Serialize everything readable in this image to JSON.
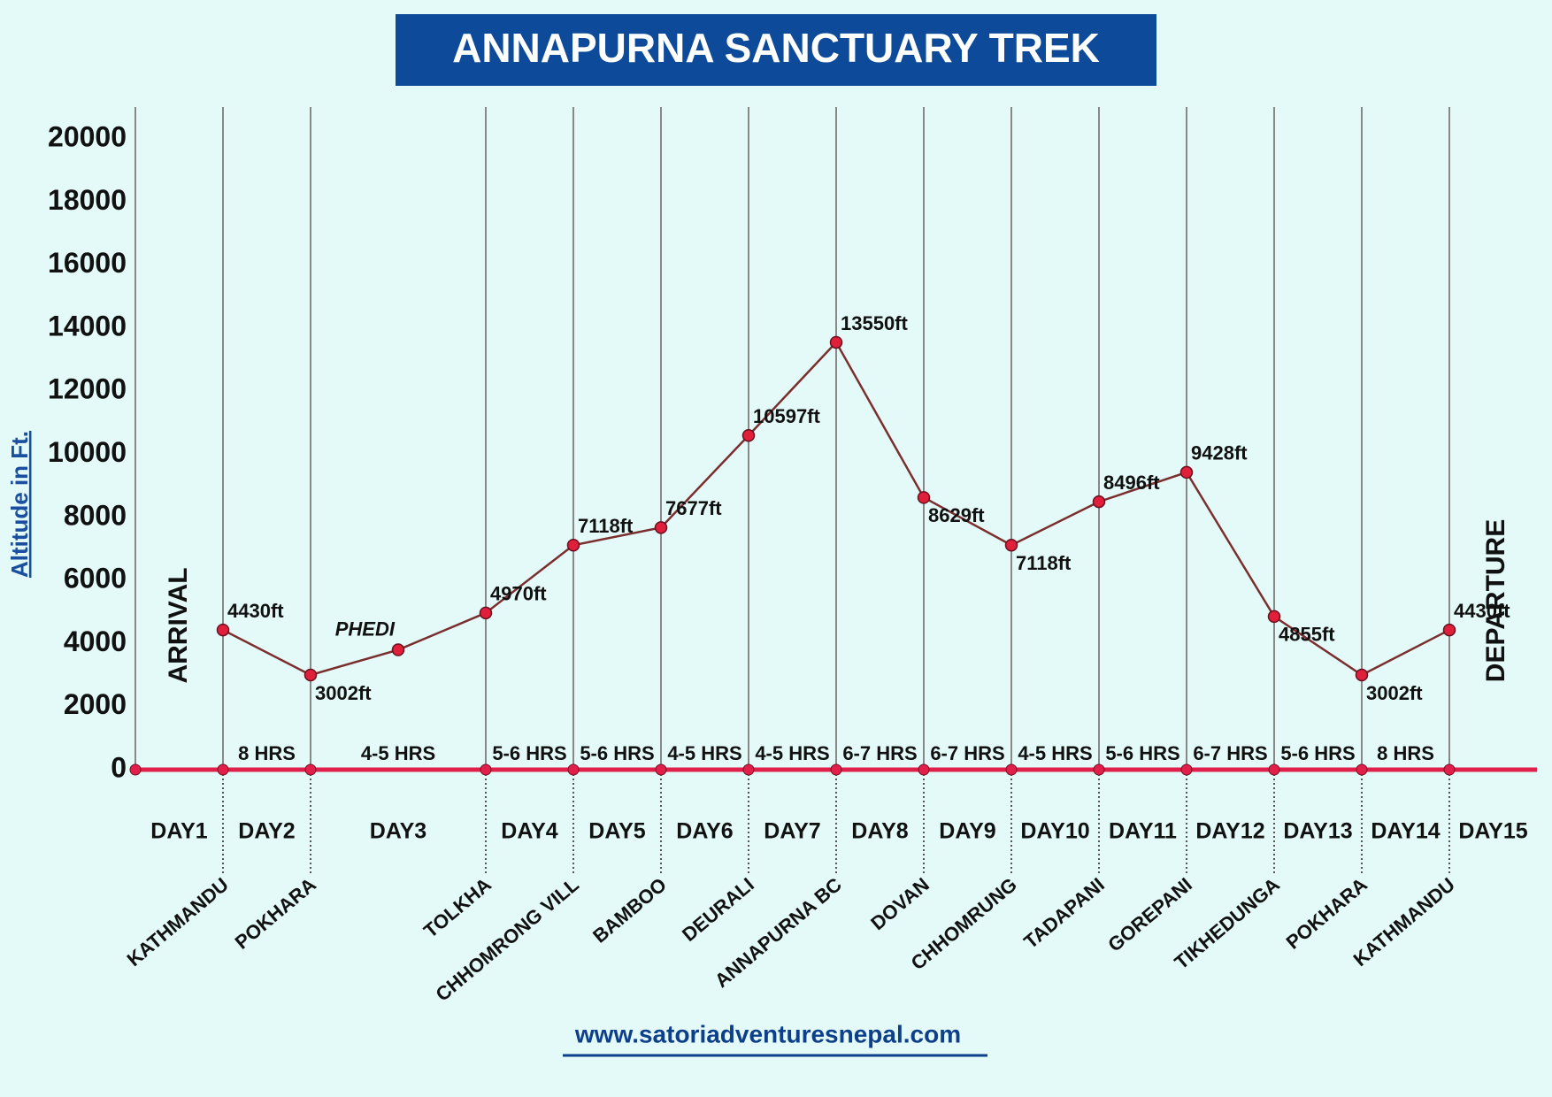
{
  "chart_data": {
    "type": "line",
    "title": "ANNAPURNA SANCTUARY TREK",
    "y_label": "Altitude in Ft.",
    "ylim": [
      0,
      20000
    ],
    "yticks": [
      0,
      2000,
      4000,
      6000,
      8000,
      10000,
      12000,
      14000,
      16000,
      18000,
      20000
    ],
    "categories": [
      "KATHMANDU",
      "POKHARA",
      null,
      "TOLKHA",
      "CHHOMRONG VILL",
      "BAMBOO",
      "DEURALI",
      "ANNAPURNA BC",
      "DOVAN",
      "CHHOMRUNG",
      "TADAPANI",
      "GOREPANI",
      "TIKHEDUNGA",
      "POKHARA",
      "KATHMANDU"
    ],
    "values": [
      4430,
      3002,
      3800,
      4970,
      7118,
      7677,
      10597,
      13550,
      8629,
      7118,
      8496,
      9428,
      4855,
      3002,
      4430
    ],
    "value_labels": [
      "4430ft",
      "3002ft",
      null,
      "4970ft",
      "7118ft",
      "7677ft",
      "10597ft",
      "13550ft",
      "8629ft",
      "7118ft",
      "8496ft",
      "9428ft",
      "4855ft",
      "3002ft",
      "4430ft"
    ],
    "annotations": [
      "PHEDI"
    ],
    "durations": [
      "8 HRS",
      "4-5 HRS",
      "5-6 HRS",
      "5-6 HRS",
      "4-5 HRS",
      "4-5 HRS",
      "6-7 HRS",
      "6-7 HRS",
      "4-5 HRS",
      "5-6 HRS",
      "6-7 HRS",
      "5-6 HRS",
      "8 HRS"
    ],
    "days": [
      "DAY1",
      "DAY2",
      "DAY3",
      "DAY4",
      "DAY5",
      "DAY6",
      "DAY7",
      "DAY8",
      "DAY9",
      "DAY10",
      "DAY11",
      "DAY12",
      "DAY13",
      "DAY14",
      "DAY15"
    ],
    "start_label": "ARRIVAL",
    "end_label": "DEPARTURE",
    "line_color": "#7a2e2e",
    "marker_color": "#e0203a",
    "axis_color": "#e0204a",
    "footer": "www.satoriadventuresnepal.com"
  }
}
